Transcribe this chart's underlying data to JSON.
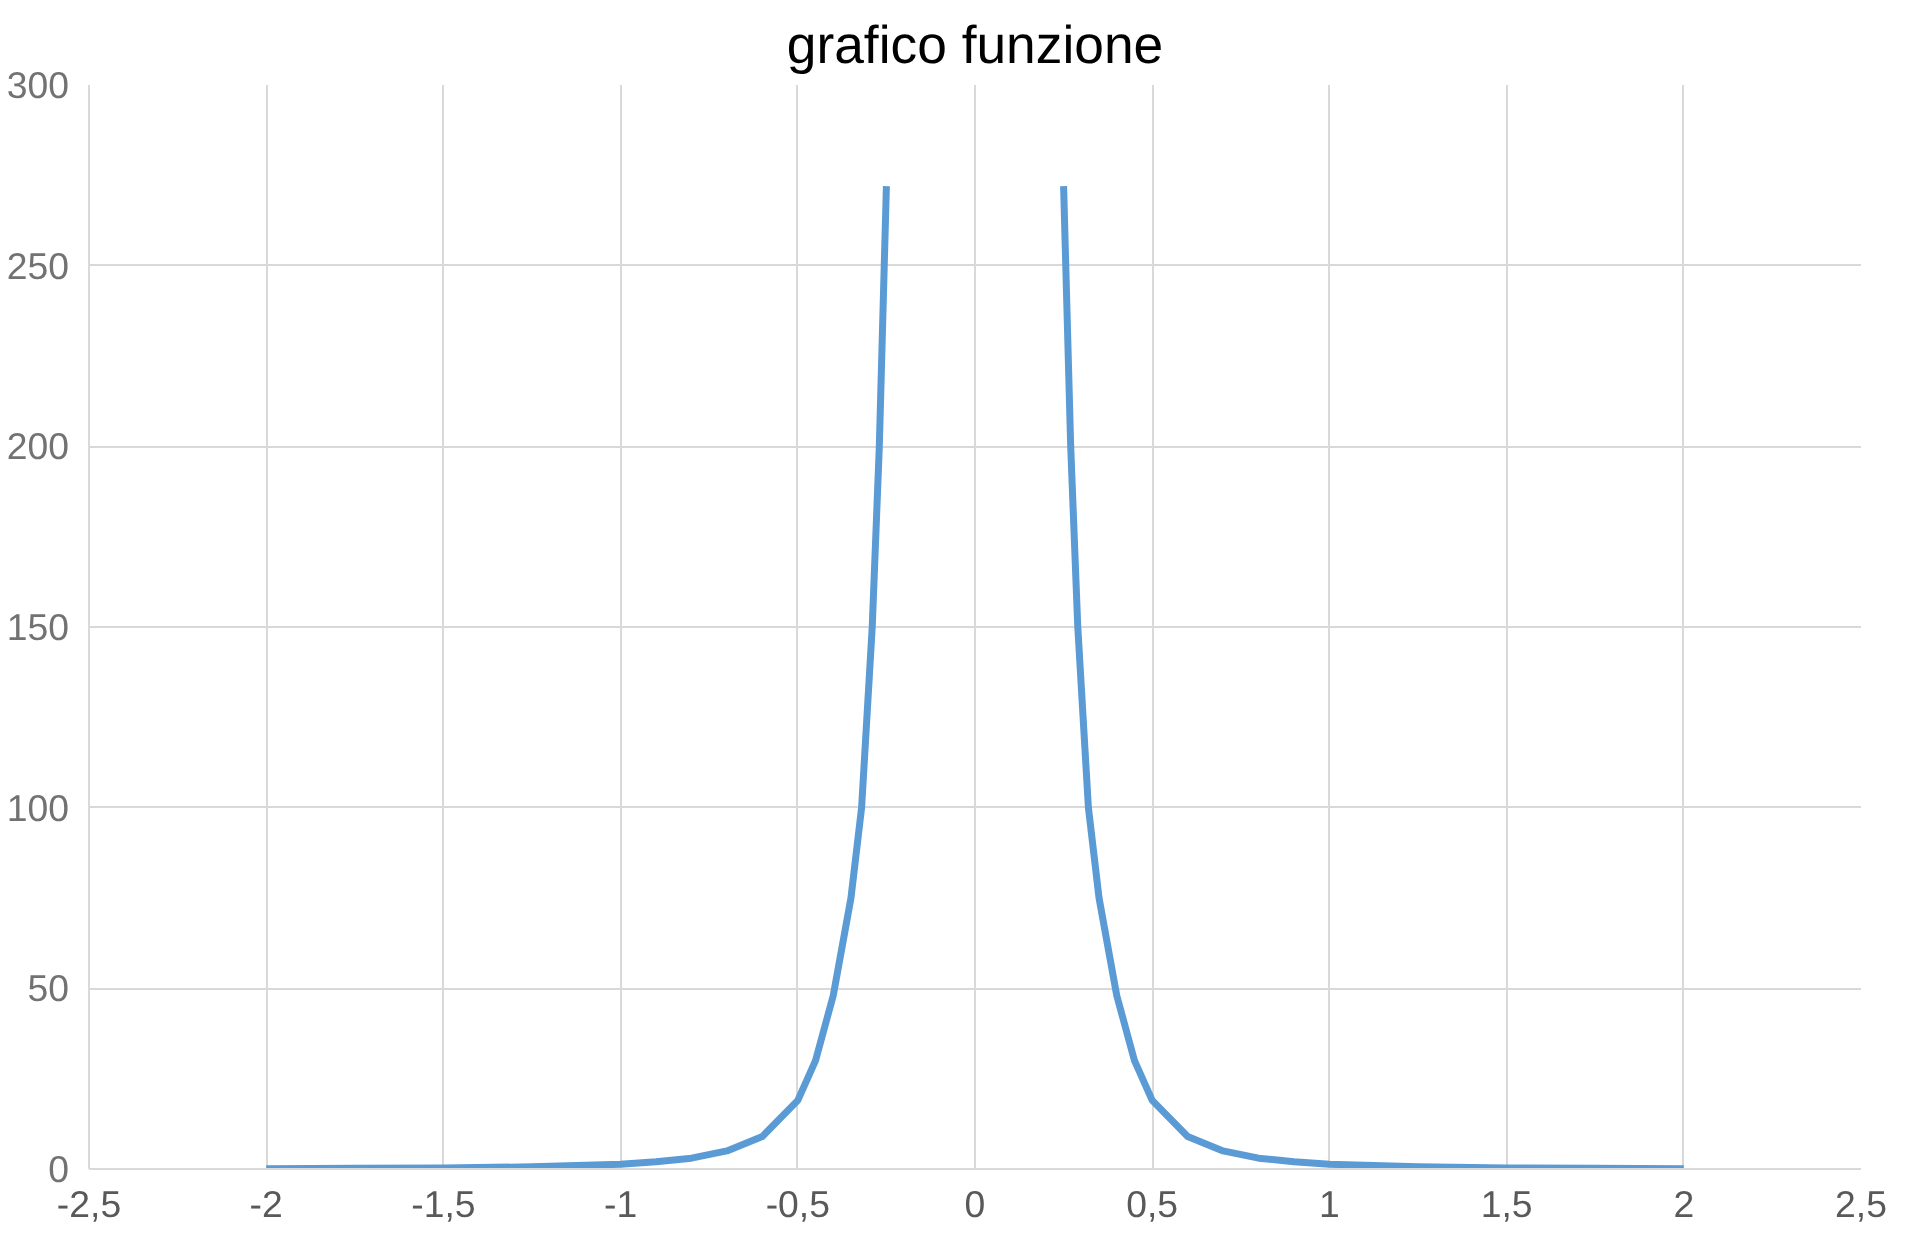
{
  "chart_data": {
    "type": "line",
    "title": "grafico funzione",
    "x": [
      -2,
      -1.75,
      -1.5,
      -1.25,
      -1,
      -0.9,
      -0.8,
      -0.7,
      -0.6,
      -0.5,
      -0.45,
      -0.4,
      -0.35,
      -0.32,
      -0.29,
      -0.27,
      -0.25,
      0,
      0.25,
      0.27,
      0.29,
      0.32,
      0.35,
      0.4,
      0.45,
      0.5,
      0.6,
      0.7,
      0.8,
      0.9,
      1,
      1.25,
      1.5,
      1.75,
      2
    ],
    "series": [
      {
        "color": "#5b9bd5",
        "values": [
          0.1,
          0.2,
          0.3,
          0.6,
          1.3,
          2,
          3,
          5,
          9,
          19,
          30,
          48,
          75,
          100,
          150,
          200,
          272,
          null,
          272,
          200,
          150,
          100,
          75,
          48,
          30,
          19,
          9,
          5,
          3,
          2,
          1.3,
          0.6,
          0.3,
          0.2,
          0.1
        ]
      }
    ],
    "xlim": [
      -2.5,
      2.5
    ],
    "ylim": [
      0,
      300
    ],
    "xticks": [
      {
        "value": -2.5,
        "label": "-2,5"
      },
      -2,
      {
        "value": -1.5,
        "label": "-1,5"
      },
      -1,
      {
        "value": -0.5,
        "label": "-0,5"
      },
      0,
      {
        "value": 0.5,
        "label": "0,5"
      },
      1,
      {
        "value": 1.5,
        "label": "1,5"
      },
      2,
      {
        "value": 2.5,
        "label": "2,5"
      }
    ],
    "yticks": [
      0,
      50,
      100,
      150,
      200,
      250,
      300
    ],
    "grid": true,
    "marker": "none",
    "line_style": "solid"
  }
}
